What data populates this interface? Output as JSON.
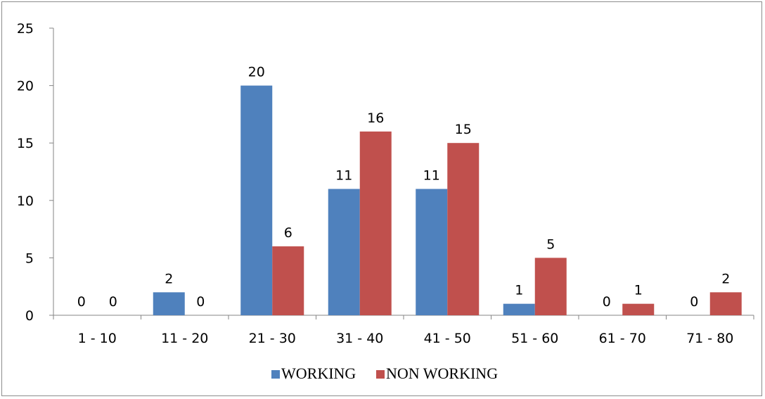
{
  "chart_data": {
    "type": "bar",
    "categories": [
      "1 - 10",
      "11 - 20",
      "21 - 30",
      "31 - 40",
      "41 - 50",
      "51 - 60",
      "61 - 70",
      "71 - 80"
    ],
    "series": [
      {
        "name": "WORKING",
        "values": [
          0,
          2,
          20,
          11,
          11,
          1,
          0,
          0
        ],
        "color": "#4f81bd"
      },
      {
        "name": "NON WORKING",
        "values": [
          0,
          0,
          6,
          16,
          15,
          5,
          1,
          2
        ],
        "color": "#c0504d"
      }
    ],
    "title": "",
    "xlabel": "",
    "ylabel": "",
    "ylim": [
      0,
      25
    ],
    "yticks": [
      0,
      5,
      10,
      15,
      20,
      25
    ],
    "grid": false,
    "legend_position": "bottom",
    "data_labels": true
  }
}
